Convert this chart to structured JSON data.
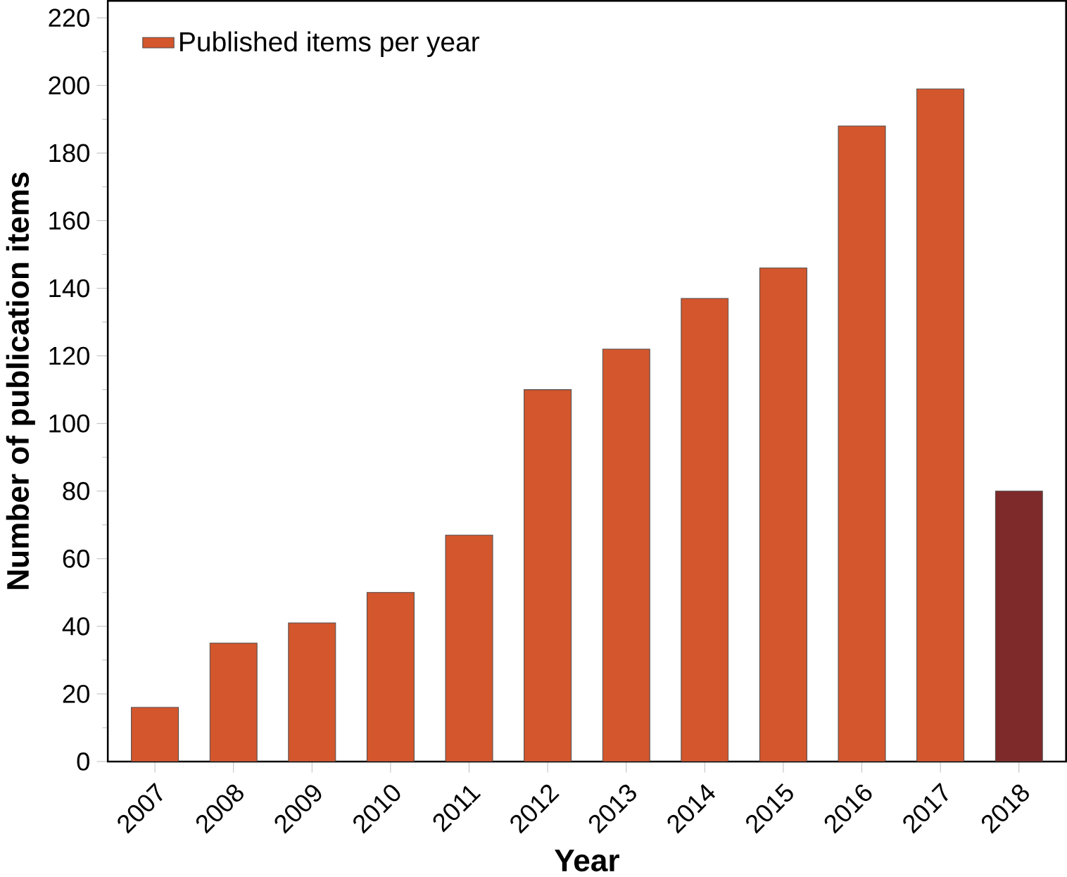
{
  "chart_data": {
    "type": "bar",
    "xlabel": "Year",
    "ylabel": "Number of publication items",
    "categories": [
      "2007",
      "2008",
      "2009",
      "2010",
      "2011",
      "2012",
      "2013",
      "2014",
      "2015",
      "2016",
      "2017",
      "2018"
    ],
    "series": [
      {
        "name": "Published items per year",
        "color": "#d4562c",
        "colors": [
          "#d4562c",
          "#d4562c",
          "#d4562c",
          "#d4562c",
          "#d4562c",
          "#d4562c",
          "#d4562c",
          "#d4562c",
          "#d4562c",
          "#d4562c",
          "#d4562c",
          "#7e2a2a"
        ],
        "values": [
          16,
          35,
          41,
          50,
          67,
          110,
          122,
          137,
          146,
          188,
          199,
          80
        ]
      }
    ],
    "ylim": [
      0,
      225
    ],
    "yticks": [
      0,
      20,
      40,
      60,
      80,
      100,
      120,
      140,
      160,
      180,
      200,
      220
    ],
    "legend": "top left",
    "grid": false
  }
}
